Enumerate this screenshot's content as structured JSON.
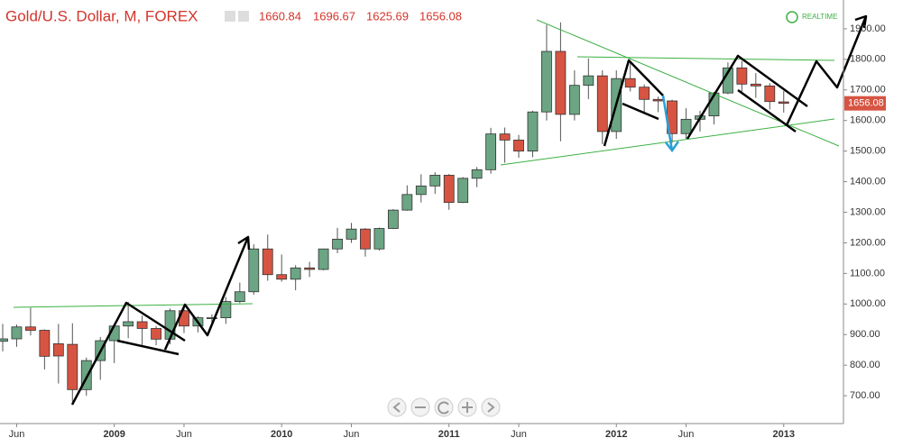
{
  "chart_data": {
    "type": "candlestick",
    "title": "Gold/U.S. Dollar, M, FOREX",
    "status": "REALTIME",
    "categories": [
      null,
      "Jun",
      null,
      null,
      null,
      null,
      null,
      null,
      "2009",
      null,
      null,
      null,
      null,
      "Jun",
      null,
      null,
      null,
      null,
      null,
      null,
      "2010",
      null,
      null,
      null,
      null,
      "Jun",
      null,
      null,
      null,
      null,
      null,
      null,
      "2011",
      null,
      null,
      null,
      null,
      "Jun",
      null,
      null,
      null,
      null,
      null,
      null,
      "2012",
      null,
      null,
      null,
      null,
      "Jun",
      null,
      null,
      null,
      null,
      null,
      null,
      "2013"
    ],
    "open": [
      878,
      886,
      925,
      914,
      870,
      868,
      720,
      815,
      880,
      928,
      942,
      920,
      885,
      978,
      928,
      953,
      955,
      1008,
      1040,
      1180,
      1096,
      1081,
      1118,
      1113,
      1180,
      1212,
      1245,
      1180,
      1247,
      1307,
      1358,
      1386,
      1421,
      1332,
      1411,
      1439,
      1556,
      1536,
      1500,
      1628,
      1826,
      1620,
      1715,
      1746,
      1564,
      1737,
      1709,
      1669,
      1664,
      1557,
      1604,
      1615,
      1690,
      1772,
      1719,
      1713,
      1660.84
    ],
    "high": [
      935,
      933,
      988,
      917,
      935,
      937,
      825,
      892,
      935,
      1007,
      962,
      928,
      985,
      990,
      960,
      966,
      1023,
      1070,
      1195,
      1227,
      1162,
      1127,
      1138,
      1180,
      1249,
      1265,
      1248,
      1250,
      1310,
      1388,
      1424,
      1431,
      1425,
      1415,
      1448,
      1576,
      1577,
      1553,
      1632,
      1913,
      1921,
      1764,
      1803,
      1764,
      1764,
      1790,
      1718,
      1678,
      1668,
      1640,
      1632,
      1693,
      1790,
      1795,
      1755,
      1722,
      1696.67
    ],
    "low": [
      845,
      860,
      897,
      786,
      740,
      681,
      700,
      752,
      807,
      888,
      866,
      865,
      868,
      905,
      907,
      932,
      935,
      1003,
      1030,
      1076,
      1073,
      1045,
      1088,
      1110,
      1166,
      1200,
      1155,
      1175,
      1245,
      1305,
      1332,
      1360,
      1308,
      1330,
      1382,
      1426,
      1462,
      1478,
      1480,
      1600,
      1532,
      1600,
      1670,
      1523,
      1540,
      1695,
      1627,
      1627,
      1527,
      1540,
      1564,
      1587,
      1686,
      1692,
      1674,
      1636,
      1625.69
    ],
    "close": [
      886,
      925,
      914,
      829,
      830,
      720,
      815,
      880,
      928,
      942,
      920,
      885,
      978,
      928,
      955,
      955,
      1008,
      1040,
      1180,
      1096,
      1081,
      1118,
      1113,
      1180,
      1212,
      1245,
      1180,
      1247,
      1307,
      1358,
      1386,
      1421,
      1332,
      1411,
      1439,
      1556,
      1536,
      1500,
      1628,
      1826,
      1620,
      1715,
      1746,
      1564,
      1737,
      1709,
      1669,
      1664,
      1557,
      1604,
      1615,
      1690,
      1772,
      1719,
      1713,
      1662,
      1656.08
    ],
    "up_color": "#6ba583",
    "down_color": "#d75442",
    "ylim": [
      609,
      1994
    ],
    "yticks": [
      {
        "value": 700,
        "label": "700.00"
      },
      {
        "value": 800,
        "label": "800.00"
      },
      {
        "value": 900,
        "label": "900.00"
      },
      {
        "value": 1000,
        "label": "1000.00"
      },
      {
        "value": 1100,
        "label": "1100.00"
      },
      {
        "value": 1200,
        "label": "1200.00"
      },
      {
        "value": 1300,
        "label": "1300.00"
      },
      {
        "value": 1400,
        "label": "1400.00"
      },
      {
        "value": 1500,
        "label": "1500.00"
      },
      {
        "value": 1600,
        "label": "1600.00"
      },
      {
        "value": 1700,
        "label": "1700.00"
      },
      {
        "value": 1800,
        "label": "1800.00"
      },
      {
        "value": 1900,
        "label": "1900.00"
      }
    ]
  }
}
